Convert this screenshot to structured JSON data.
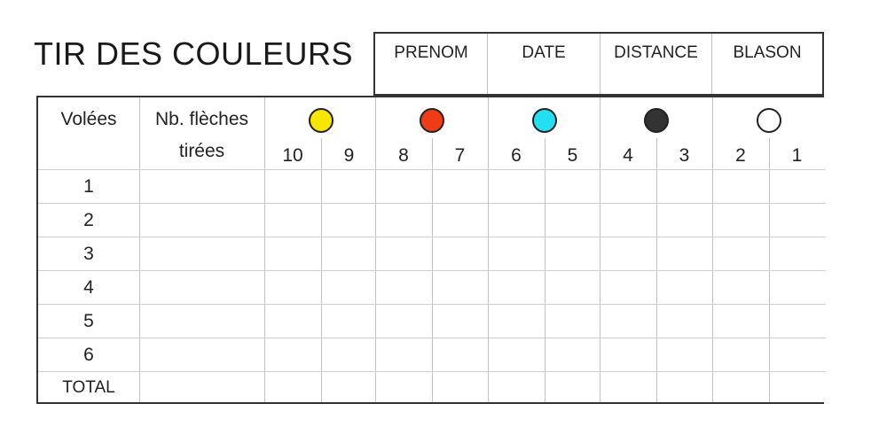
{
  "title": "TIR DES COULEURS",
  "info_headers": [
    "PRENOM",
    "DATE",
    "DISTANCE",
    "BLASON"
  ],
  "columns": {
    "volees": "Volées",
    "nb_fleches_line1": "Nb. flèches",
    "nb_fleches_line2": "tirées"
  },
  "colors": [
    {
      "name": "yellow-dot",
      "fill": "#f7e600",
      "scores": [
        "10",
        "9"
      ]
    },
    {
      "name": "red-dot",
      "fill": "#f03c14",
      "scores": [
        "8",
        "7"
      ]
    },
    {
      "name": "cyan-dot",
      "fill": "#22e0f0",
      "scores": [
        "6",
        "5"
      ]
    },
    {
      "name": "black-dot",
      "fill": "#333333",
      "scores": [
        "4",
        "3"
      ]
    },
    {
      "name": "white-dot",
      "fill": "#ffffff",
      "scores": [
        "2",
        "1"
      ]
    }
  ],
  "rows": [
    "1",
    "2",
    "3",
    "4",
    "5",
    "6",
    "TOTAL"
  ]
}
